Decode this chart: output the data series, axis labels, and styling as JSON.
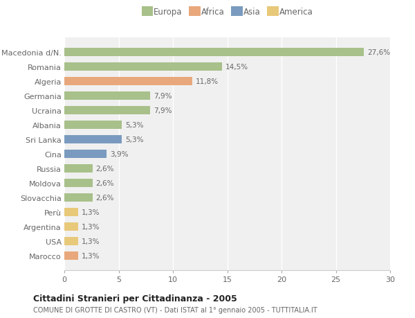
{
  "categories": [
    "Marocco",
    "USA",
    "Argentina",
    "Perù",
    "Slovacchia",
    "Moldova",
    "Russia",
    "Cina",
    "Sri Lanka",
    "Albania",
    "Ucraina",
    "Germania",
    "Algeria",
    "Romania",
    "Macedonia d/N."
  ],
  "values": [
    1.3,
    1.3,
    1.3,
    1.3,
    2.6,
    2.6,
    2.6,
    3.9,
    5.3,
    5.3,
    7.9,
    7.9,
    11.8,
    14.5,
    27.6
  ],
  "labels": [
    "1,3%",
    "1,3%",
    "1,3%",
    "1,3%",
    "2,6%",
    "2,6%",
    "2,6%",
    "3,9%",
    "5,3%",
    "5,3%",
    "7,9%",
    "7,9%",
    "11,8%",
    "14,5%",
    "27,6%"
  ],
  "colors": [
    "#e8a87c",
    "#e8c97a",
    "#e8c97a",
    "#e8c97a",
    "#a8c08a",
    "#a8c08a",
    "#a8c08a",
    "#7a9bbf",
    "#7a9bbf",
    "#a8c08a",
    "#a8c08a",
    "#a8c08a",
    "#e8a87c",
    "#a8c08a",
    "#a8c08a"
  ],
  "continent_colors": {
    "Europa": "#a8c08a",
    "Africa": "#e8a87c",
    "Asia": "#7a9bbf",
    "America": "#e8c97a"
  },
  "xlim": [
    0,
    30
  ],
  "xticks": [
    0,
    5,
    10,
    15,
    20,
    25,
    30
  ],
  "title": "Cittadini Stranieri per Cittadinanza - 2005",
  "subtitle": "COMUNE DI GROTTE DI CASTRO (VT) - Dati ISTAT al 1° gennaio 2005 - TUTTITALIA.IT",
  "fig_bg_color": "#ffffff",
  "plot_bg_color": "#f0f0f0",
  "grid_color": "#ffffff",
  "label_color": "#666666",
  "title_color": "#222222",
  "subtitle_color": "#666666"
}
